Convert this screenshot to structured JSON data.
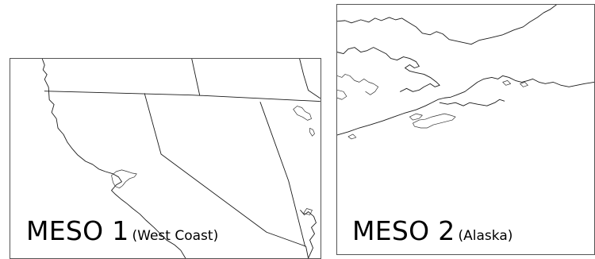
{
  "panels": [
    {
      "title": "MESO 1",
      "region": "(West Coast)"
    },
    {
      "title": "MESO 2",
      "region": "(Alaska)"
    }
  ],
  "colors": {
    "background": "#ffffff",
    "map_line": "#1a1a1a",
    "panel_border": "#555555"
  }
}
